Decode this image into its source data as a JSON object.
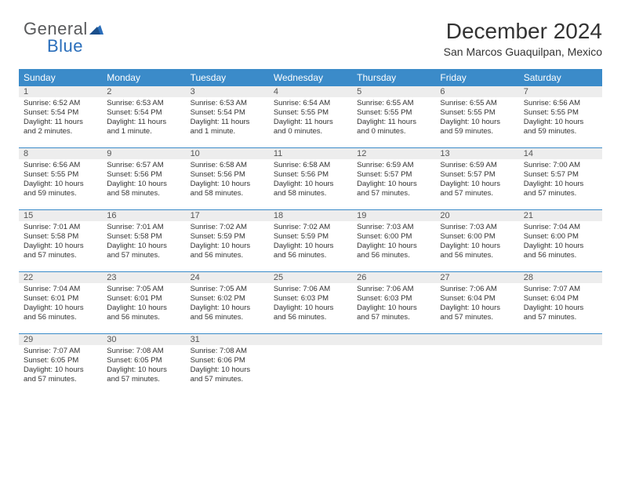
{
  "brand": {
    "part1": "General",
    "part2": "Blue"
  },
  "header": {
    "title": "December 2024",
    "location": "San Marcos Guaquilpan, Mexico"
  },
  "colors": {
    "header_bg": "#3b8bc9",
    "header_text": "#ffffff",
    "daynum_bg": "#ededed",
    "rule": "#3b8bc9",
    "body_text": "#333333"
  },
  "day_labels": [
    "Sunday",
    "Monday",
    "Tuesday",
    "Wednesday",
    "Thursday",
    "Friday",
    "Saturday"
  ],
  "weeks": [
    [
      {
        "n": "1",
        "sunrise": "6:52 AM",
        "sunset": "5:54 PM",
        "daylight": "11 hours and 2 minutes."
      },
      {
        "n": "2",
        "sunrise": "6:53 AM",
        "sunset": "5:54 PM",
        "daylight": "11 hours and 1 minute."
      },
      {
        "n": "3",
        "sunrise": "6:53 AM",
        "sunset": "5:54 PM",
        "daylight": "11 hours and 1 minute."
      },
      {
        "n": "4",
        "sunrise": "6:54 AM",
        "sunset": "5:55 PM",
        "daylight": "11 hours and 0 minutes."
      },
      {
        "n": "5",
        "sunrise": "6:55 AM",
        "sunset": "5:55 PM",
        "daylight": "11 hours and 0 minutes."
      },
      {
        "n": "6",
        "sunrise": "6:55 AM",
        "sunset": "5:55 PM",
        "daylight": "10 hours and 59 minutes."
      },
      {
        "n": "7",
        "sunrise": "6:56 AM",
        "sunset": "5:55 PM",
        "daylight": "10 hours and 59 minutes."
      }
    ],
    [
      {
        "n": "8",
        "sunrise": "6:56 AM",
        "sunset": "5:55 PM",
        "daylight": "10 hours and 59 minutes."
      },
      {
        "n": "9",
        "sunrise": "6:57 AM",
        "sunset": "5:56 PM",
        "daylight": "10 hours and 58 minutes."
      },
      {
        "n": "10",
        "sunrise": "6:58 AM",
        "sunset": "5:56 PM",
        "daylight": "10 hours and 58 minutes."
      },
      {
        "n": "11",
        "sunrise": "6:58 AM",
        "sunset": "5:56 PM",
        "daylight": "10 hours and 58 minutes."
      },
      {
        "n": "12",
        "sunrise": "6:59 AM",
        "sunset": "5:57 PM",
        "daylight": "10 hours and 57 minutes."
      },
      {
        "n": "13",
        "sunrise": "6:59 AM",
        "sunset": "5:57 PM",
        "daylight": "10 hours and 57 minutes."
      },
      {
        "n": "14",
        "sunrise": "7:00 AM",
        "sunset": "5:57 PM",
        "daylight": "10 hours and 57 minutes."
      }
    ],
    [
      {
        "n": "15",
        "sunrise": "7:01 AM",
        "sunset": "5:58 PM",
        "daylight": "10 hours and 57 minutes."
      },
      {
        "n": "16",
        "sunrise": "7:01 AM",
        "sunset": "5:58 PM",
        "daylight": "10 hours and 57 minutes."
      },
      {
        "n": "17",
        "sunrise": "7:02 AM",
        "sunset": "5:59 PM",
        "daylight": "10 hours and 56 minutes."
      },
      {
        "n": "18",
        "sunrise": "7:02 AM",
        "sunset": "5:59 PM",
        "daylight": "10 hours and 56 minutes."
      },
      {
        "n": "19",
        "sunrise": "7:03 AM",
        "sunset": "6:00 PM",
        "daylight": "10 hours and 56 minutes."
      },
      {
        "n": "20",
        "sunrise": "7:03 AM",
        "sunset": "6:00 PM",
        "daylight": "10 hours and 56 minutes."
      },
      {
        "n": "21",
        "sunrise": "7:04 AM",
        "sunset": "6:00 PM",
        "daylight": "10 hours and 56 minutes."
      }
    ],
    [
      {
        "n": "22",
        "sunrise": "7:04 AM",
        "sunset": "6:01 PM",
        "daylight": "10 hours and 56 minutes."
      },
      {
        "n": "23",
        "sunrise": "7:05 AM",
        "sunset": "6:01 PM",
        "daylight": "10 hours and 56 minutes."
      },
      {
        "n": "24",
        "sunrise": "7:05 AM",
        "sunset": "6:02 PM",
        "daylight": "10 hours and 56 minutes."
      },
      {
        "n": "25",
        "sunrise": "7:06 AM",
        "sunset": "6:03 PM",
        "daylight": "10 hours and 56 minutes."
      },
      {
        "n": "26",
        "sunrise": "7:06 AM",
        "sunset": "6:03 PM",
        "daylight": "10 hours and 57 minutes."
      },
      {
        "n": "27",
        "sunrise": "7:06 AM",
        "sunset": "6:04 PM",
        "daylight": "10 hours and 57 minutes."
      },
      {
        "n": "28",
        "sunrise": "7:07 AM",
        "sunset": "6:04 PM",
        "daylight": "10 hours and 57 minutes."
      }
    ],
    [
      {
        "n": "29",
        "sunrise": "7:07 AM",
        "sunset": "6:05 PM",
        "daylight": "10 hours and 57 minutes."
      },
      {
        "n": "30",
        "sunrise": "7:08 AM",
        "sunset": "6:05 PM",
        "daylight": "10 hours and 57 minutes."
      },
      {
        "n": "31",
        "sunrise": "7:08 AM",
        "sunset": "6:06 PM",
        "daylight": "10 hours and 57 minutes."
      },
      null,
      null,
      null,
      null
    ]
  ],
  "labels": {
    "sunrise_prefix": "Sunrise: ",
    "sunset_prefix": "Sunset: ",
    "daylight_prefix": "Daylight: "
  }
}
